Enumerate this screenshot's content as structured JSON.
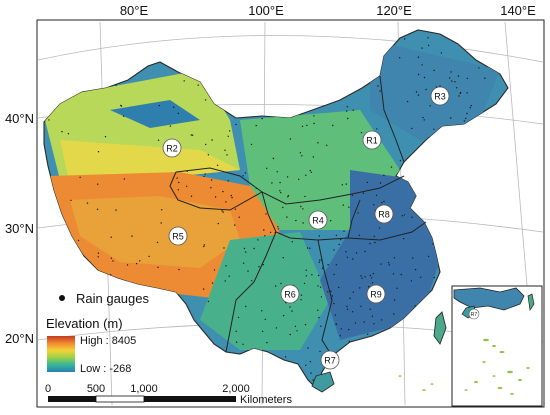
{
  "graticule": {
    "longitudes": [
      "80°E",
      "100°E",
      "120°E",
      "140°E"
    ],
    "latitudes": [
      "40°N",
      "30°N",
      "20°N"
    ]
  },
  "regions": [
    "R1",
    "R2",
    "R3",
    "R4",
    "R5",
    "R6",
    "R7",
    "R8",
    "R9"
  ],
  "legend": {
    "gauge_label": "Rain gauges",
    "elevation_title": "Elevation (m)",
    "high_label": "High : 8405",
    "low_label": "Low : -268",
    "ramp_colors": [
      "#c43c25",
      "#f08a2e",
      "#f5d23a",
      "#9bd04a",
      "#36b59a",
      "#2a7fb0"
    ]
  },
  "scale": {
    "ticks": [
      "0",
      "500",
      "1,000",
      "2,000"
    ],
    "unit": "Kilometers"
  },
  "inset": {
    "label": "R7"
  }
}
